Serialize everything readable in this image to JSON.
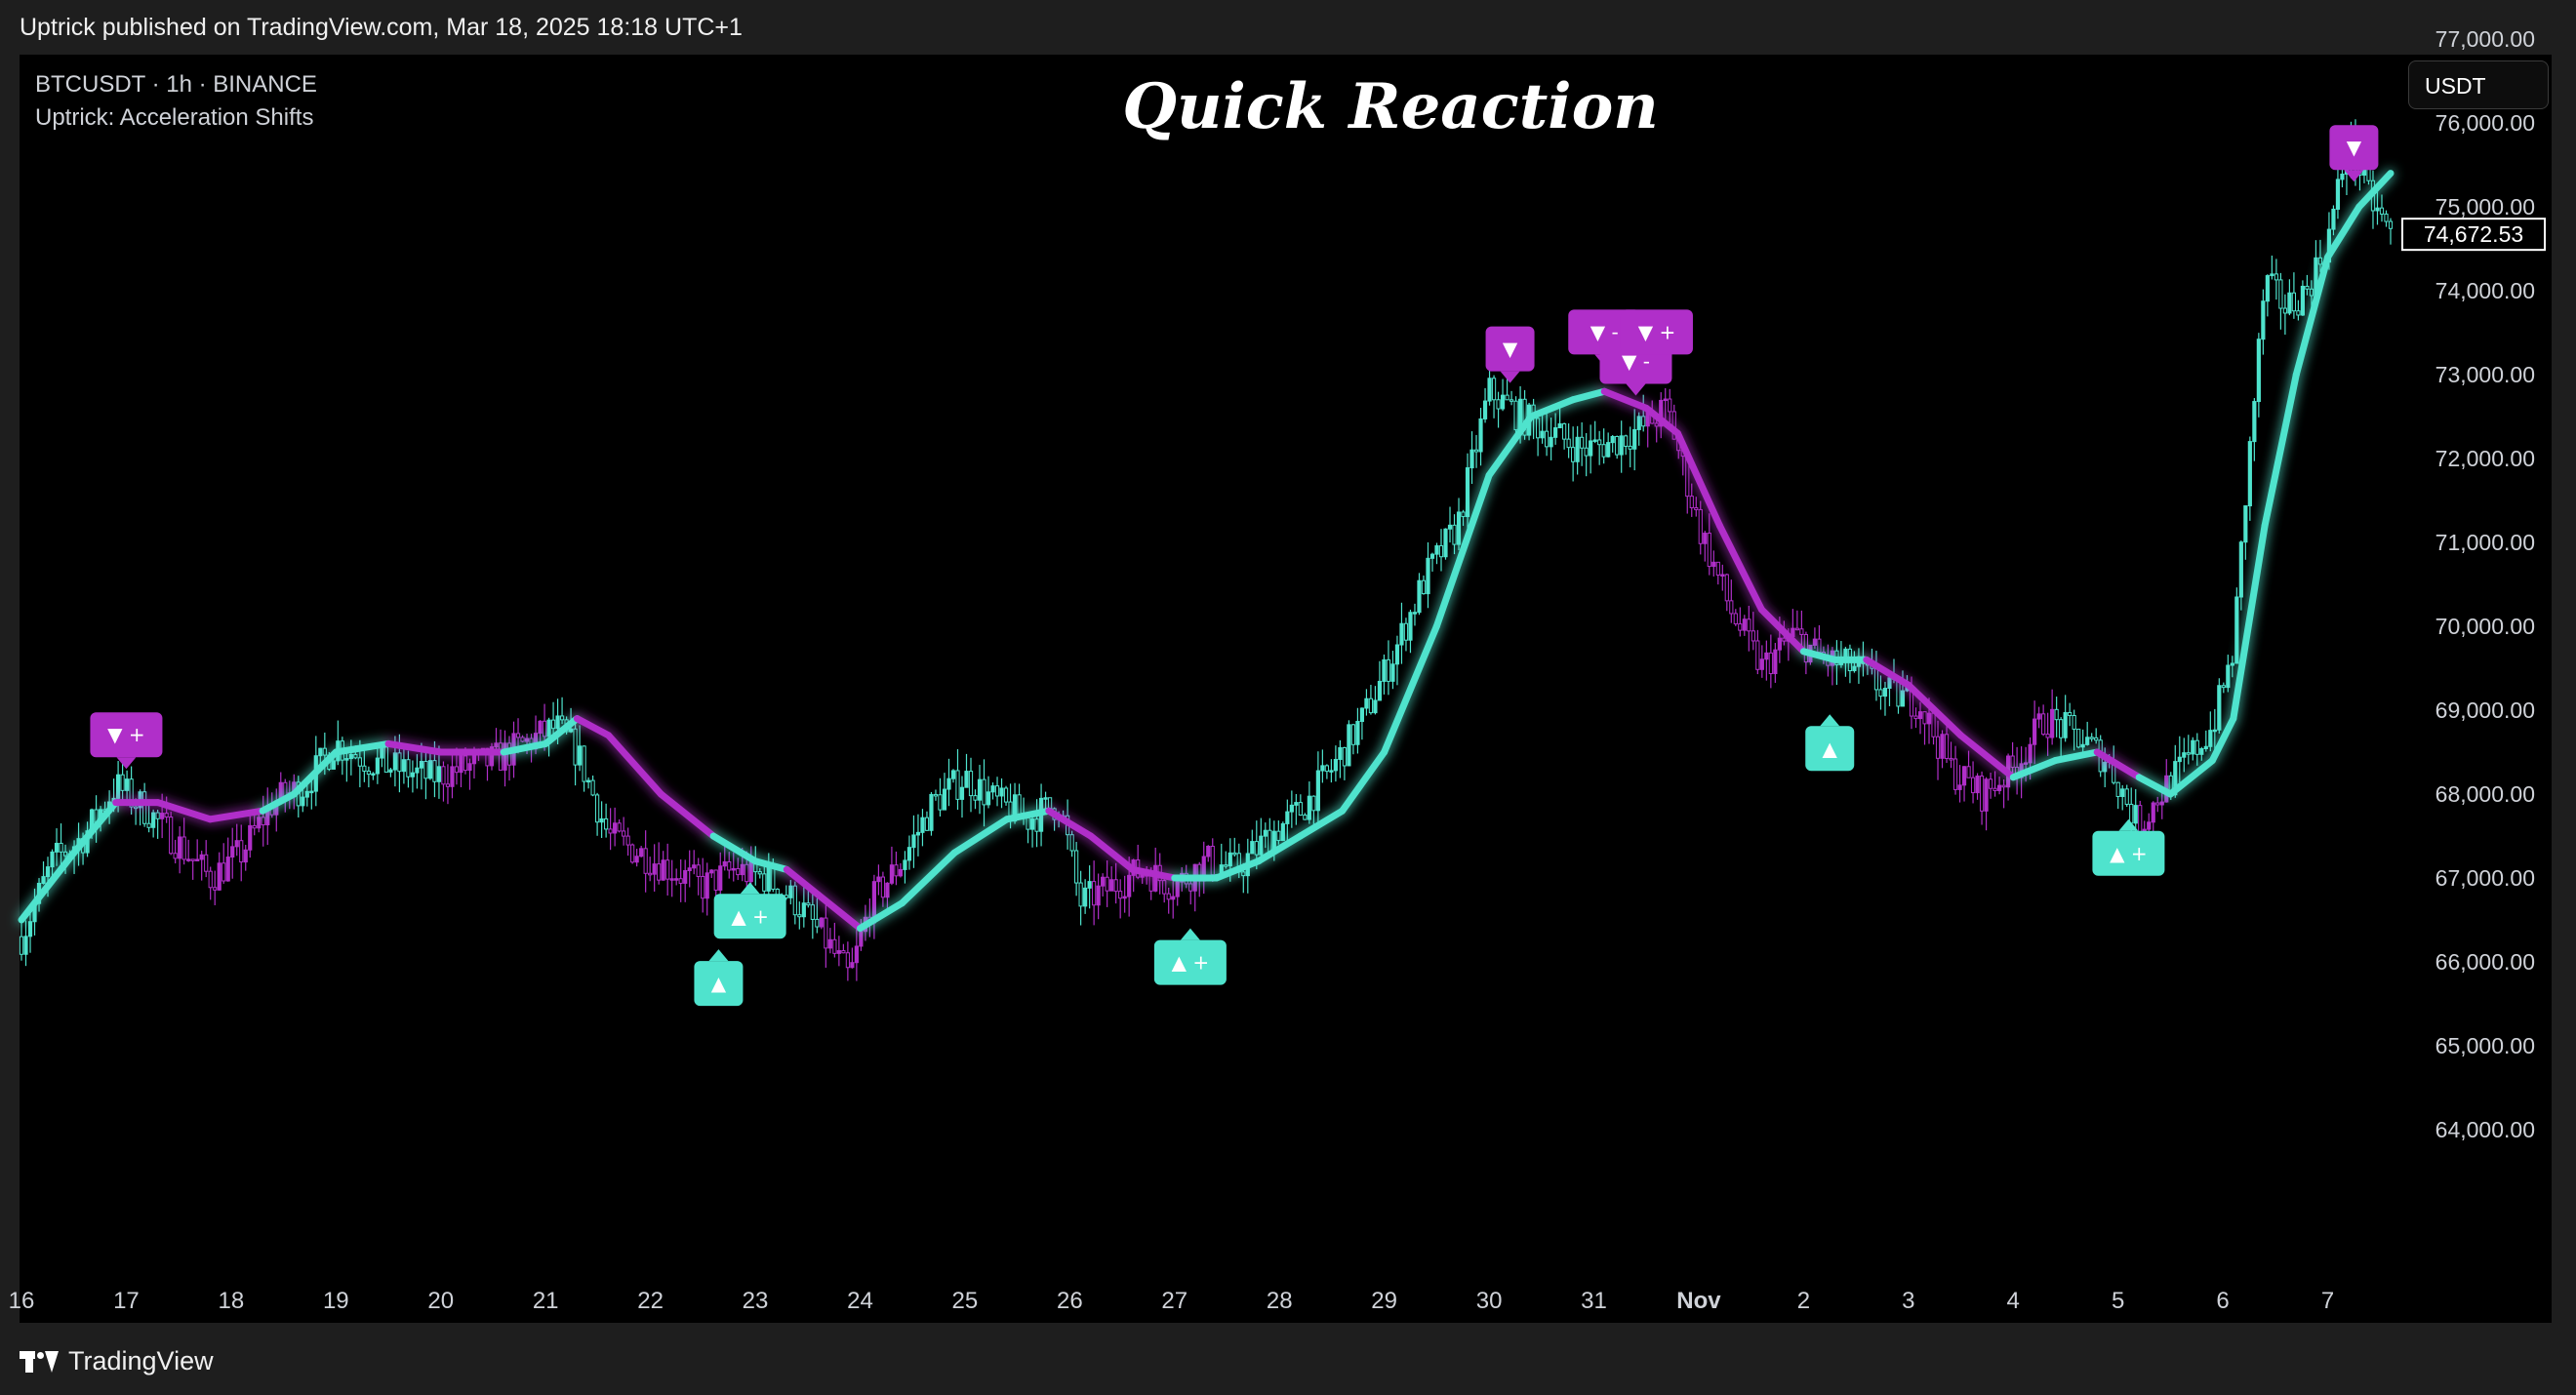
{
  "header": {
    "published_text": "Uptrick published on TradingView.com, Mar 18, 2025 18:18 UTC+1"
  },
  "legend": {
    "symbol_line": "BTCUSDT · 1h · BINANCE",
    "indicator_line": "Uptrick: Acceleration Shifts"
  },
  "headline": "Quick Reaction",
  "currency_button": "USDT",
  "footer": {
    "brand": "TradingView",
    "logo_icon": "tradingview-logo-icon"
  },
  "colors": {
    "background": "#000000",
    "bull": "#4fe3cd",
    "bear": "#b02fc9",
    "label_text": "#ffffff"
  },
  "chart_data": {
    "type": "candlestick",
    "title": "",
    "symbol": "BTCUSDT",
    "interval": "1h",
    "exchange": "BINANCE",
    "last_price": "74,672.53",
    "ylim": [
      63200,
      77000
    ],
    "y_ticks": [
      "77,000.00",
      "76,000.00",
      "75,000.00",
      "74,000.00",
      "73,000.00",
      "72,000.00",
      "71,000.00",
      "70,000.00",
      "69,000.00",
      "68,000.00",
      "67,000.00",
      "66,000.00",
      "65,000.00",
      "64,000.00"
    ],
    "y_tick_values": [
      77000,
      76000,
      75000,
      74000,
      73000,
      72000,
      71000,
      70000,
      69000,
      68000,
      67000,
      66000,
      65000,
      64000
    ],
    "x_ticks": [
      "16",
      "17",
      "18",
      "19",
      "20",
      "21",
      "22",
      "23",
      "24",
      "25",
      "26",
      "27",
      "28",
      "29",
      "30",
      "31",
      "Nov",
      "2",
      "3",
      "4",
      "5",
      "6",
      "7"
    ],
    "x_tick_days": [
      0,
      1,
      2,
      3,
      4,
      5,
      6,
      7,
      8,
      9,
      10,
      11,
      12,
      13,
      14,
      15,
      16,
      17,
      18,
      19,
      20,
      21,
      22
    ],
    "xlim_days": [
      0,
      22.6
    ],
    "price_path": [
      {
        "day": 0.0,
        "price": 66300
      },
      {
        "day": 0.3,
        "price": 67200
      },
      {
        "day": 0.6,
        "price": 67500
      },
      {
        "day": 0.9,
        "price": 68100
      },
      {
        "day": 1.2,
        "price": 67800
      },
      {
        "day": 1.5,
        "price": 67400
      },
      {
        "day": 1.8,
        "price": 67000
      },
      {
        "day": 2.1,
        "price": 67300
      },
      {
        "day": 2.4,
        "price": 67900
      },
      {
        "day": 2.7,
        "price": 68100
      },
      {
        "day": 3.0,
        "price": 68600
      },
      {
        "day": 3.3,
        "price": 68400
      },
      {
        "day": 3.6,
        "price": 68300
      },
      {
        "day": 3.9,
        "price": 68200
      },
      {
        "day": 4.2,
        "price": 68300
      },
      {
        "day": 4.5,
        "price": 68400
      },
      {
        "day": 4.8,
        "price": 68600
      },
      {
        "day": 5.1,
        "price": 68800
      },
      {
        "day": 5.3,
        "price": 68500
      },
      {
        "day": 5.6,
        "price": 67500
      },
      {
        "day": 5.9,
        "price": 67300
      },
      {
        "day": 6.2,
        "price": 67100
      },
      {
        "day": 6.5,
        "price": 66900
      },
      {
        "day": 6.8,
        "price": 67100
      },
      {
        "day": 7.1,
        "price": 67000
      },
      {
        "day": 7.4,
        "price": 66700
      },
      {
        "day": 7.7,
        "price": 66200
      },
      {
        "day": 7.9,
        "price": 65800
      },
      {
        "day": 8.1,
        "price": 66700
      },
      {
        "day": 8.4,
        "price": 67200
      },
      {
        "day": 8.7,
        "price": 67900
      },
      {
        "day": 9.0,
        "price": 68200
      },
      {
        "day": 9.3,
        "price": 67900
      },
      {
        "day": 9.6,
        "price": 67700
      },
      {
        "day": 9.9,
        "price": 67900
      },
      {
        "day": 10.1,
        "price": 66700
      },
      {
        "day": 10.4,
        "price": 66900
      },
      {
        "day": 10.7,
        "price": 67100
      },
      {
        "day": 11.0,
        "price": 66900
      },
      {
        "day": 11.3,
        "price": 67200
      },
      {
        "day": 11.6,
        "price": 67100
      },
      {
        "day": 11.9,
        "price": 67500
      },
      {
        "day": 12.2,
        "price": 67800
      },
      {
        "day": 12.5,
        "price": 68300
      },
      {
        "day": 12.8,
        "price": 68900
      },
      {
        "day": 13.1,
        "price": 69700
      },
      {
        "day": 13.4,
        "price": 70600
      },
      {
        "day": 13.7,
        "price": 71200
      },
      {
        "day": 14.0,
        "price": 72800
      },
      {
        "day": 14.3,
        "price": 72500
      },
      {
        "day": 14.6,
        "price": 72300
      },
      {
        "day": 14.9,
        "price": 72100
      },
      {
        "day": 15.2,
        "price": 72200
      },
      {
        "day": 15.5,
        "price": 72400
      },
      {
        "day": 15.7,
        "price": 72600
      },
      {
        "day": 16.0,
        "price": 71200
      },
      {
        "day": 16.3,
        "price": 70200
      },
      {
        "day": 16.6,
        "price": 69500
      },
      {
        "day": 16.9,
        "price": 69900
      },
      {
        "day": 17.2,
        "price": 69600
      },
      {
        "day": 17.5,
        "price": 69500
      },
      {
        "day": 17.8,
        "price": 69200
      },
      {
        "day": 18.1,
        "price": 69100
      },
      {
        "day": 18.4,
        "price": 68300
      },
      {
        "day": 18.7,
        "price": 68000
      },
      {
        "day": 19.0,
        "price": 68300
      },
      {
        "day": 19.3,
        "price": 68900
      },
      {
        "day": 19.6,
        "price": 68700
      },
      {
        "day": 19.9,
        "price": 68400
      },
      {
        "day": 20.2,
        "price": 67600
      },
      {
        "day": 20.4,
        "price": 68000
      },
      {
        "day": 20.6,
        "price": 68300
      },
      {
        "day": 20.9,
        "price": 68800
      },
      {
        "day": 21.1,
        "price": 69700
      },
      {
        "day": 21.2,
        "price": 71300
      },
      {
        "day": 21.4,
        "price": 74100
      },
      {
        "day": 21.6,
        "price": 73800
      },
      {
        "day": 21.8,
        "price": 74000
      },
      {
        "day": 22.0,
        "price": 74600
      },
      {
        "day": 22.2,
        "price": 75800
      },
      {
        "day": 22.4,
        "price": 75100
      },
      {
        "day": 22.6,
        "price": 74670
      }
    ],
    "trend_line": [
      {
        "day": 0.0,
        "value": 66500,
        "state": "bull"
      },
      {
        "day": 0.5,
        "value": 67300,
        "state": "bull"
      },
      {
        "day": 0.9,
        "value": 67900,
        "state": "bull"
      },
      {
        "day": 1.3,
        "value": 67900,
        "state": "bear"
      },
      {
        "day": 1.8,
        "value": 67700,
        "state": "bear"
      },
      {
        "day": 2.3,
        "value": 67800,
        "state": "bear"
      },
      {
        "day": 2.6,
        "value": 68000,
        "state": "bull"
      },
      {
        "day": 3.0,
        "value": 68500,
        "state": "bull"
      },
      {
        "day": 3.5,
        "value": 68600,
        "state": "bull"
      },
      {
        "day": 4.0,
        "value": 68500,
        "state": "bear"
      },
      {
        "day": 4.6,
        "value": 68500,
        "state": "bear"
      },
      {
        "day": 5.0,
        "value": 68600,
        "state": "bull"
      },
      {
        "day": 5.3,
        "value": 68900,
        "state": "bull"
      },
      {
        "day": 5.6,
        "value": 68700,
        "state": "bear"
      },
      {
        "day": 6.1,
        "value": 68000,
        "state": "bear"
      },
      {
        "day": 6.6,
        "value": 67500,
        "state": "bear"
      },
      {
        "day": 7.0,
        "value": 67200,
        "state": "bull"
      },
      {
        "day": 7.3,
        "value": 67100,
        "state": "bull"
      },
      {
        "day": 7.6,
        "value": 66800,
        "state": "bear"
      },
      {
        "day": 8.0,
        "value": 66400,
        "state": "bear"
      },
      {
        "day": 8.4,
        "value": 66700,
        "state": "bull"
      },
      {
        "day": 8.9,
        "value": 67300,
        "state": "bull"
      },
      {
        "day": 9.4,
        "value": 67700,
        "state": "bull"
      },
      {
        "day": 9.8,
        "value": 67800,
        "state": "bull"
      },
      {
        "day": 10.2,
        "value": 67500,
        "state": "bear"
      },
      {
        "day": 10.6,
        "value": 67100,
        "state": "bear"
      },
      {
        "day": 11.0,
        "value": 67000,
        "state": "bear"
      },
      {
        "day": 11.4,
        "value": 67000,
        "state": "bull"
      },
      {
        "day": 11.8,
        "value": 67200,
        "state": "bull"
      },
      {
        "day": 12.2,
        "value": 67500,
        "state": "bull"
      },
      {
        "day": 12.6,
        "value": 67800,
        "state": "bull"
      },
      {
        "day": 13.0,
        "value": 68500,
        "state": "bull"
      },
      {
        "day": 13.5,
        "value": 70000,
        "state": "bull"
      },
      {
        "day": 14.0,
        "value": 71800,
        "state": "bull"
      },
      {
        "day": 14.4,
        "value": 72500,
        "state": "bull"
      },
      {
        "day": 14.8,
        "value": 72700,
        "state": "bull"
      },
      {
        "day": 15.1,
        "value": 72800,
        "state": "bull"
      },
      {
        "day": 15.5,
        "value": 72600,
        "state": "bear"
      },
      {
        "day": 15.8,
        "value": 72300,
        "state": "bear"
      },
      {
        "day": 16.2,
        "value": 71200,
        "state": "bear"
      },
      {
        "day": 16.6,
        "value": 70200,
        "state": "bear"
      },
      {
        "day": 17.0,
        "value": 69700,
        "state": "bear"
      },
      {
        "day": 17.3,
        "value": 69600,
        "state": "bull"
      },
      {
        "day": 17.6,
        "value": 69600,
        "state": "bull"
      },
      {
        "day": 18.0,
        "value": 69300,
        "state": "bear"
      },
      {
        "day": 18.5,
        "value": 68700,
        "state": "bear"
      },
      {
        "day": 19.0,
        "value": 68200,
        "state": "bear"
      },
      {
        "day": 19.4,
        "value": 68400,
        "state": "bull"
      },
      {
        "day": 19.8,
        "value": 68500,
        "state": "bull"
      },
      {
        "day": 20.2,
        "value": 68200,
        "state": "bear"
      },
      {
        "day": 20.5,
        "value": 68000,
        "state": "bull"
      },
      {
        "day": 20.9,
        "value": 68400,
        "state": "bull"
      },
      {
        "day": 21.1,
        "value": 68900,
        "state": "bull"
      },
      {
        "day": 21.4,
        "value": 71200,
        "state": "bull"
      },
      {
        "day": 21.7,
        "value": 73000,
        "state": "bull"
      },
      {
        "day": 22.0,
        "value": 74400,
        "state": "bull"
      },
      {
        "day": 22.3,
        "value": 75000,
        "state": "bull"
      },
      {
        "day": 22.6,
        "value": 75400,
        "state": "bull"
      }
    ],
    "signals": [
      {
        "day": 1.0,
        "price": 68300,
        "dir": "down",
        "text": "▼ +"
      },
      {
        "day": 6.65,
        "price": 66150,
        "dir": "up",
        "text": "▲"
      },
      {
        "day": 6.95,
        "price": 66950,
        "dir": "up",
        "text": "▲ +"
      },
      {
        "day": 11.15,
        "price": 66400,
        "dir": "up",
        "text": "▲ +"
      },
      {
        "day": 14.2,
        "price": 72900,
        "dir": "down",
        "text": "▼"
      },
      {
        "day": 15.1,
        "price": 73100,
        "dir": "down",
        "text": "▼ -"
      },
      {
        "day": 15.4,
        "price": 72750,
        "dir": "down",
        "text": "▼ -"
      },
      {
        "day": 15.6,
        "price": 73100,
        "dir": "down",
        "text": "▼ +"
      },
      {
        "day": 17.25,
        "price": 68950,
        "dir": "up",
        "text": "▲"
      },
      {
        "day": 20.1,
        "price": 67700,
        "dir": "up",
        "text": "▲ +"
      },
      {
        "day": 22.25,
        "price": 75300,
        "dir": "down",
        "text": "▼"
      }
    ]
  }
}
